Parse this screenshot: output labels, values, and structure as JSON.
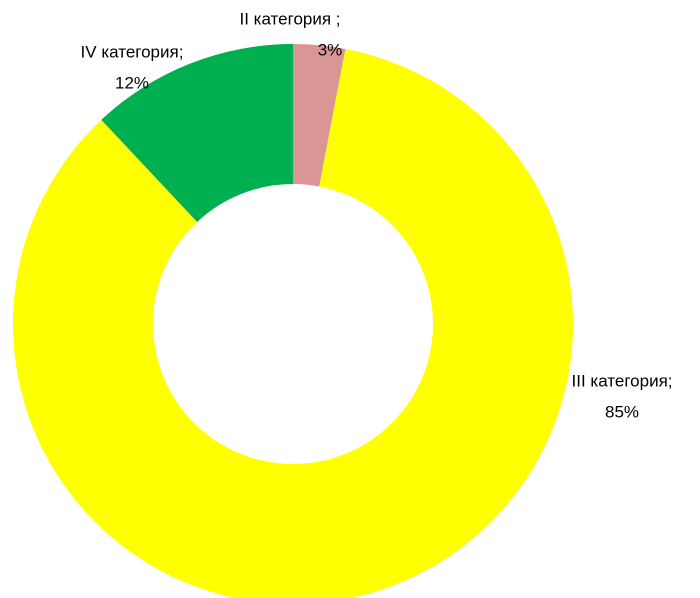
{
  "chart_data": {
    "type": "donut",
    "categories": [
      "II категория ;",
      "III категория;",
      "IV категория;"
    ],
    "values": [
      3,
      85,
      12
    ],
    "value_labels": [
      "3%",
      "85%",
      "12%"
    ],
    "colors": [
      "#d99694",
      "#ffff00",
      "#00b050"
    ]
  }
}
